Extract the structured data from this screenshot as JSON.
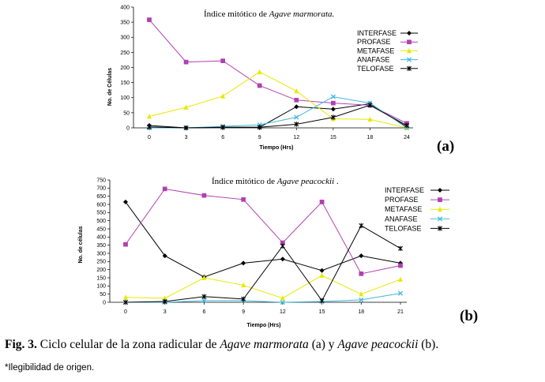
{
  "chart_data": [
    {
      "id": "a",
      "type": "line",
      "title": "Índice mitótico de ",
      "title_species": "Agave marmorata.",
      "xlabel": "Tiempo (Hrs)",
      "ylabel": "No. de Células",
      "categories": [
        "0",
        "3",
        "6",
        "9",
        "12",
        "15",
        "18",
        "24"
      ],
      "yticks": [
        0,
        50,
        100,
        150,
        200,
        250,
        300,
        350,
        400
      ],
      "ylim": [
        0,
        400
      ],
      "panel_label": "(a)",
      "series": [
        {
          "name": "INTERFASE",
          "color": "#000000",
          "marker": "diamond",
          "values": [
            8,
            0,
            2,
            2,
            70,
            62,
            80,
            3
          ]
        },
        {
          "name": "PROFASE",
          "color": "#b040b0",
          "marker": "square",
          "values": [
            358,
            218,
            222,
            140,
            92,
            82,
            75,
            15
          ]
        },
        {
          "name": "METAFASE",
          "color": "#e8e800",
          "marker": "triangle",
          "values": [
            38,
            68,
            105,
            185,
            122,
            30,
            28,
            0
          ]
        },
        {
          "name": "ANAFASE",
          "color": "#40b8e0",
          "marker": "x",
          "values": [
            0,
            0,
            5,
            10,
            35,
            103,
            82,
            0
          ]
        },
        {
          "name": "TELOFASE",
          "color": "#000000",
          "marker": "star",
          "values": [
            3,
            0,
            2,
            2,
            12,
            35,
            75,
            8
          ]
        }
      ]
    },
    {
      "id": "b",
      "type": "line",
      "title": "Índice mitótico de ",
      "title_species": "Agave peacockii",
      "title_suffix": " .",
      "xlabel": "Tiempo (Hrs)",
      "ylabel": "No. de células",
      "categories": [
        "0",
        "3",
        "6",
        "9",
        "12",
        "15",
        "18",
        "21"
      ],
      "yticks": [
        0,
        50,
        100,
        150,
        200,
        250,
        300,
        350,
        400,
        450,
        500,
        550,
        600,
        650,
        700,
        750
      ],
      "ylim": [
        0,
        750
      ],
      "panel_label": "(b)",
      "series": [
        {
          "name": "INTERFASE",
          "color": "#000000",
          "marker": "diamond",
          "values": [
            615,
            285,
            155,
            240,
            265,
            195,
            285,
            240
          ]
        },
        {
          "name": "PROFASE",
          "color": "#b040b0",
          "marker": "square",
          "values": [
            355,
            695,
            655,
            630,
            365,
            615,
            175,
            225
          ]
        },
        {
          "name": "METAFASE",
          "color": "#e8e800",
          "marker": "triangle",
          "values": [
            30,
            25,
            150,
            105,
            25,
            165,
            50,
            140
          ]
        },
        {
          "name": "ANAFASE",
          "color": "#40b8e0",
          "marker": "x",
          "values": [
            0,
            0,
            10,
            10,
            0,
            5,
            15,
            55
          ]
        },
        {
          "name": "TELOFASE",
          "color": "#000000",
          "marker": "star",
          "values": [
            0,
            5,
            35,
            20,
            345,
            10,
            470,
            330
          ]
        }
      ]
    }
  ],
  "caption": {
    "label": "Fig. 3.",
    "text1": " Ciclo celular de la zona radicular de ",
    "species1": "Agave marmorata",
    "text2": " (a) y ",
    "species2": "Agave peacockii",
    "text3": " (b)."
  },
  "note": "*Ilegibilidad de origen."
}
